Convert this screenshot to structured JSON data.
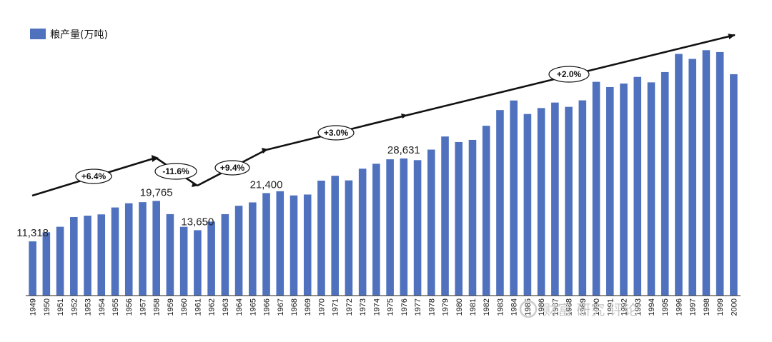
{
  "chart_data": {
    "type": "bar",
    "legend": "粮产量(万吨)",
    "legend_position": "top-left",
    "bar_color": "#4f71be",
    "grid": false,
    "ylim": [
      0,
      55000
    ],
    "categories": [
      "1949",
      "1950",
      "1951",
      "1952",
      "1953",
      "1954",
      "1955",
      "1956",
      "1957",
      "1958",
      "1959",
      "1960",
      "1961",
      "1962",
      "1963",
      "1964",
      "1965",
      "1966",
      "1967",
      "1968",
      "1969",
      "1970",
      "1971",
      "1972",
      "1973",
      "1974",
      "1975",
      "1976",
      "1977",
      "1978",
      "1979",
      "1980",
      "1981",
      "1982",
      "1983",
      "1984",
      "1985",
      "1986",
      "1987",
      "1988",
      "1989",
      "1990",
      "1991",
      "1992",
      "1993",
      "1994",
      "1995",
      "1996",
      "1997",
      "1998",
      "1999",
      "2000"
    ],
    "series": [
      {
        "name": "粮产量(万吨)",
        "values": [
          11318,
          13213,
          14369,
          16392,
          16683,
          16952,
          18394,
          19275,
          19505,
          19765,
          17000,
          14350,
          13650,
          15441,
          17000,
          18750,
          19453,
          21400,
          21782,
          20906,
          21097,
          23996,
          25014,
          24048,
          26494,
          27527,
          28452,
          28631,
          28273,
          30477,
          33212,
          32056,
          32502,
          35450,
          38728,
          40731,
          37911,
          39151,
          40298,
          39408,
          40755,
          44624,
          43529,
          44266,
          45649,
          44510,
          46662,
          50454,
          49417,
          51230,
          50839,
          46218
        ]
      }
    ],
    "data_labels": [
      {
        "category": "1949",
        "text": "11,318"
      },
      {
        "category": "1958",
        "text": "19,765"
      },
      {
        "category": "1961",
        "text": "13,650"
      },
      {
        "category": "1966",
        "text": "21,400"
      },
      {
        "category": "1976",
        "text": "28,631"
      }
    ],
    "growth_annotations": [
      "+6.4%",
      "-11.6%",
      "+9.4%",
      "+3.0%",
      "+2.0%"
    ],
    "watermark": "财富 研究 评论"
  }
}
